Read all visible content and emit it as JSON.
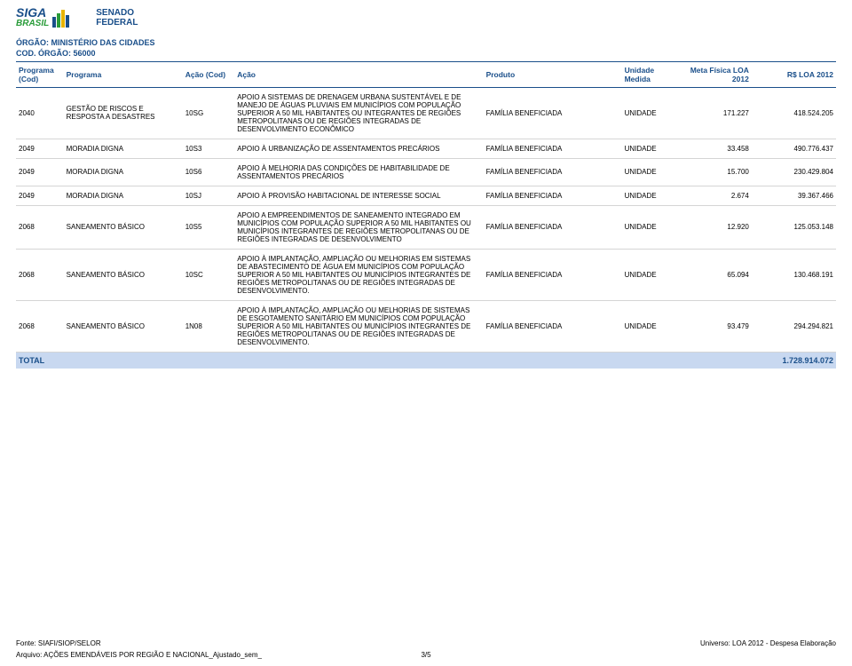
{
  "branding": {
    "logo_line1": "SIGA",
    "logo_line2": "BRASIL",
    "org_line1": "SENADO",
    "org_line2": "FEDERAL"
  },
  "orgao": {
    "label": "ÓRGÃO: MINISTÉRIO DAS CIDADES",
    "cod_label": "COD. ÓRGÃO:",
    "cod_value": "56000"
  },
  "columns": {
    "prog_cod": "Programa (Cod)",
    "prog": "Programa",
    "acao_cod": "Ação (Cod)",
    "acao": "Ação",
    "produto": "Produto",
    "unidade": "Unidade Medida",
    "meta": "Meta Física LOA 2012",
    "rs": "R$ LOA 2012"
  },
  "rows": [
    {
      "prog_cod": "2040",
      "prog": "GESTÃO DE RISCOS E RESPOSTA A DESASTRES",
      "acao_cod": "10SG",
      "acao": "APOIO A SISTEMAS DE DRENAGEM URBANA SUSTENTÁVEL E DE MANEJO DE ÁGUAS PLUVIAIS EM MUNICÍPIOS COM POPULAÇÃO SUPERIOR A 50 MIL HABITANTES OU INTEGRANTES DE REGIÕES METROPOLITANAS OU DE REGIÕES INTEGRADAS DE DESENVOLVIMENTO ECONÔMICO",
      "produto": "FAMÍLIA BENEFICIADA",
      "unidade": "UNIDADE",
      "meta": "171.227",
      "rs": "418.524.205"
    },
    {
      "prog_cod": "2049",
      "prog": "MORADIA DIGNA",
      "acao_cod": "10S3",
      "acao": "APOIO À URBANIZAÇÃO DE ASSENTAMENTOS PRECÁRIOS",
      "produto": "FAMÍLIA BENEFICIADA",
      "unidade": "UNIDADE",
      "meta": "33.458",
      "rs": "490.776.437"
    },
    {
      "prog_cod": "2049",
      "prog": "MORADIA DIGNA",
      "acao_cod": "10S6",
      "acao": "APOIO À MELHORIA DAS CONDIÇÕES DE HABITABILIDADE DE ASSENTAMENTOS PRECÁRIOS",
      "produto": "FAMÍLIA BENEFICIADA",
      "unidade": "UNIDADE",
      "meta": "15.700",
      "rs": "230.429.804"
    },
    {
      "prog_cod": "2049",
      "prog": "MORADIA DIGNA",
      "acao_cod": "10SJ",
      "acao": "APOIO À PROVISÃO HABITACIONAL DE INTERESSE SOCIAL",
      "produto": "FAMÍLIA BENEFICIADA",
      "unidade": "UNIDADE",
      "meta": "2.674",
      "rs": "39.367.466"
    },
    {
      "prog_cod": "2068",
      "prog": "SANEAMENTO BÁSICO",
      "acao_cod": "10S5",
      "acao": "APOIO A EMPREENDIMENTOS DE SANEAMENTO INTEGRADO EM MUNICÍPIOS COM POPULAÇÃO SUPERIOR A 50 MIL HABITANTES OU MUNICÍPIOS INTEGRANTES DE REGIÕES METROPOLITANAS OU DE REGIÕES INTEGRADAS DE DESENVOLVIMENTO",
      "produto": "FAMÍLIA BENEFICIADA",
      "unidade": "UNIDADE",
      "meta": "12.920",
      "rs": "125.053.148"
    },
    {
      "prog_cod": "2068",
      "prog": "SANEAMENTO BÁSICO",
      "acao_cod": "10SC",
      "acao": "APOIO À IMPLANTAÇÃO, AMPLIAÇÃO OU MELHORIAS EM SISTEMAS DE ABASTECIMENTO DE ÁGUA EM MUNICÍPIOS COM POPULAÇÃO SUPERIOR A 50 MIL HABITANTES OU MUNICÍPIOS INTEGRANTES DE REGIÕES METROPOLITANAS OU DE REGIÕES INTEGRADAS DE DESENVOLVIMENTO.",
      "produto": "FAMÍLIA BENEFICIADA",
      "unidade": "UNIDADE",
      "meta": "65.094",
      "rs": "130.468.191"
    },
    {
      "prog_cod": "2068",
      "prog": "SANEAMENTO BÁSICO",
      "acao_cod": "1N08",
      "acao": "APOIO À IMPLANTAÇÃO, AMPLIAÇÃO OU MELHORIAS DE SISTEMAS DE ESGOTAMENTO SANITÁRIO EM MUNICÍPIOS COM POPULAÇÃO SUPERIOR A 50 MIL HABITANTES OU MUNICÍPIOS INTEGRANTES DE REGIÕES METROPOLITANAS OU DE REGIÕES INTEGRADAS DE DESENVOLVIMENTO.",
      "produto": "FAMÍLIA BENEFICIADA",
      "unidade": "UNIDADE",
      "meta": "93.479",
      "rs": "294.294.821"
    }
  ],
  "total": {
    "label": "TOTAL",
    "value": "1.728.914.072"
  },
  "footer": {
    "fonte": "Fonte: SIAFI/SIOP/SELOR",
    "universo": "Universo: LOA 2012 - Despesa Elaboração",
    "arquivo": "Arquivo: AÇÕES EMENDÁVEIS POR REGIÃO E NACIONAL_Ajustado_sem_",
    "page": "3/5"
  },
  "style": {
    "brand_blue": "#1a4f8a",
    "brand_green": "#2a9c3a",
    "total_bg": "#c8d8f0",
    "body_font_size_pt": 8,
    "header_font_size_pt": 9
  }
}
